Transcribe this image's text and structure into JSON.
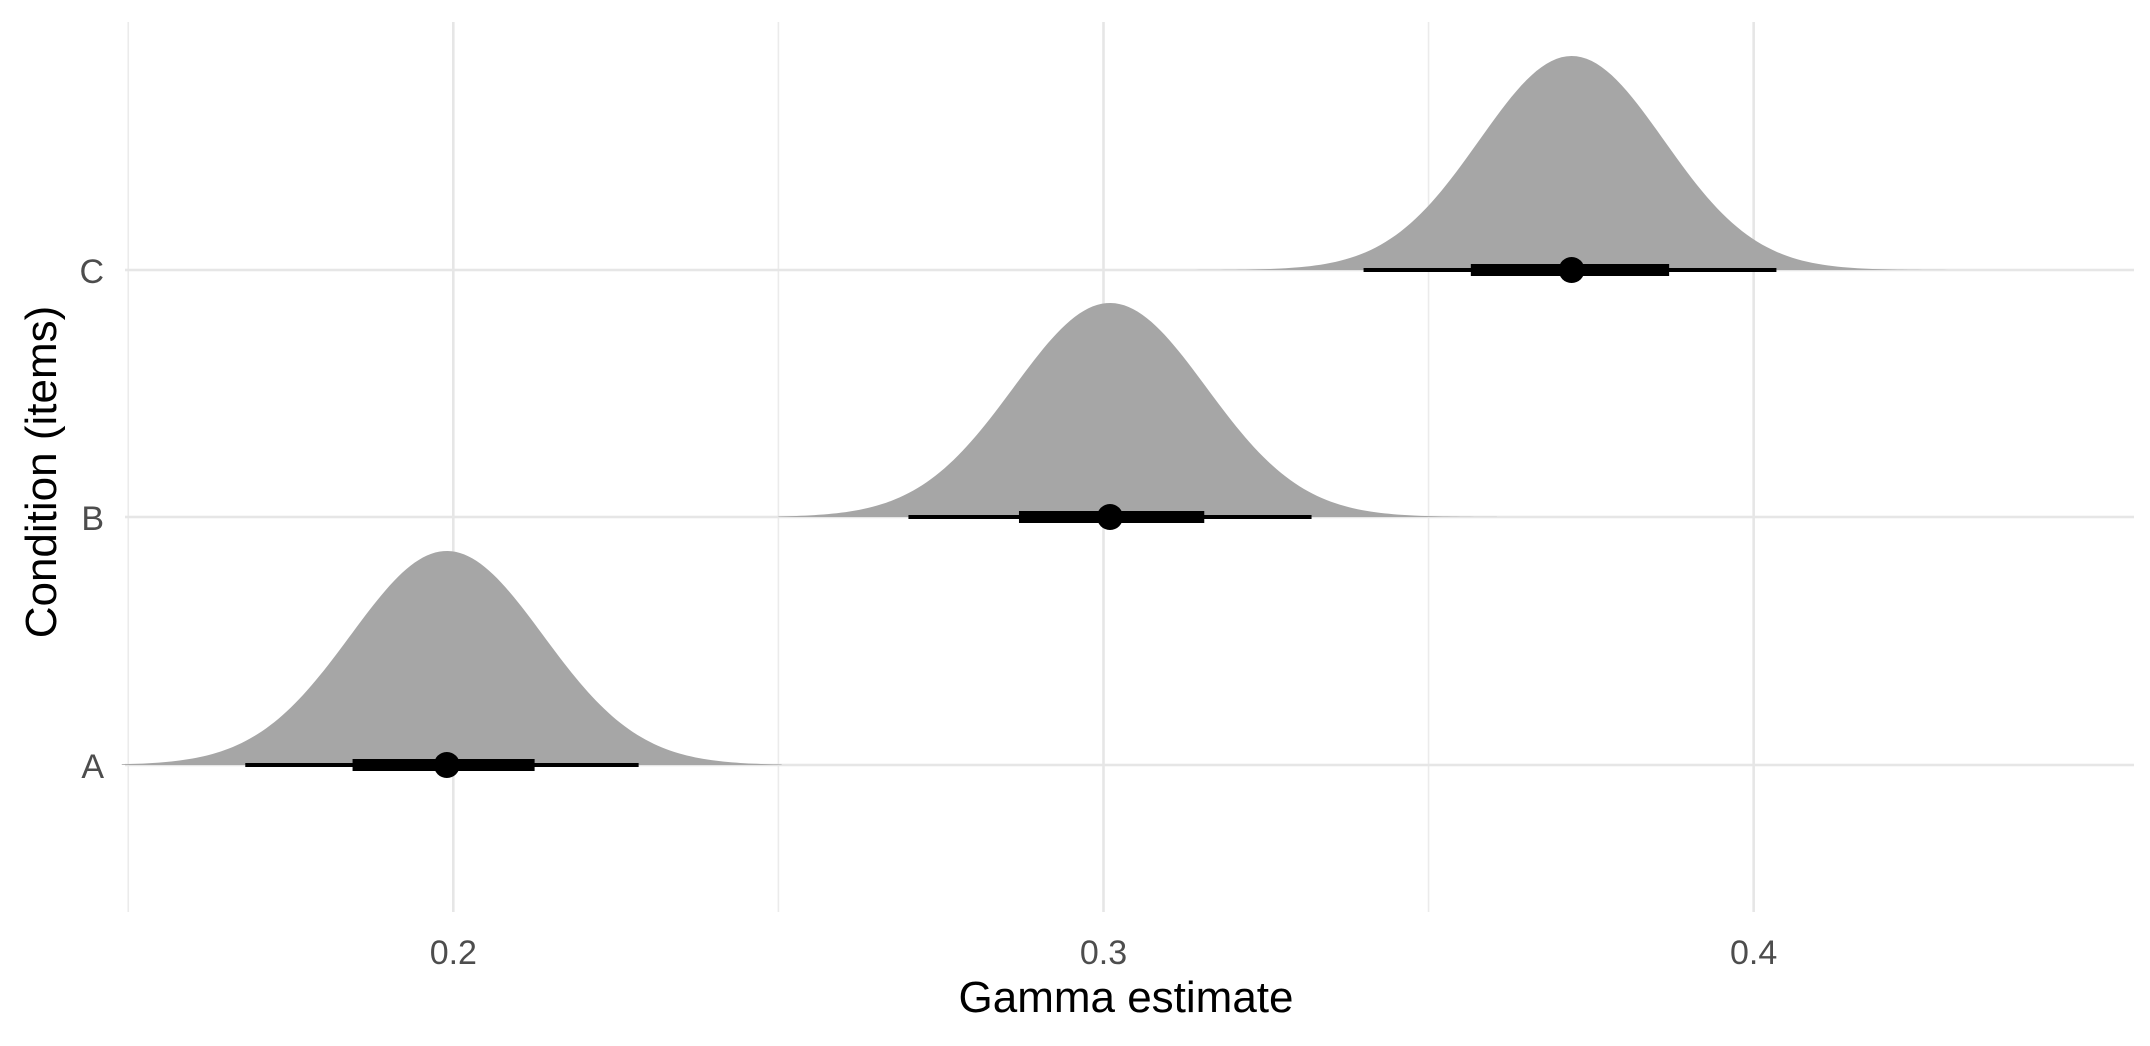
{
  "chart_data": {
    "type": "density",
    "xlabel": "Gamma estimate",
    "ylabel": "Condition (items)",
    "x_ticks": [
      0.2,
      0.3,
      0.4
    ],
    "x_tick_labels": [
      "0.2",
      "0.3",
      "0.4"
    ],
    "x_minor_ticks": [
      0.15,
      0.25,
      0.35
    ],
    "xlim": [
      0.1495,
      0.4585
    ],
    "categories": [
      "A",
      "B",
      "C"
    ],
    "grid": true,
    "fill_color": "#a6a6a6",
    "point_color": "#000000",
    "series": [
      {
        "category": "A",
        "mean": 0.199,
        "sd": 0.0148,
        "min": 0.149,
        "max": 0.2505,
        "interval_66": [
          0.1845,
          0.2125
        ],
        "interval_95": [
          0.168,
          0.2285
        ]
      },
      {
        "category": "B",
        "mean": 0.301,
        "sd": 0.0148,
        "min": 0.25,
        "max": 0.3605,
        "interval_66": [
          0.287,
          0.3155
        ],
        "interval_95": [
          0.27,
          0.332
        ]
      },
      {
        "category": "C",
        "mean": 0.372,
        "sd": 0.0142,
        "min": 0.311,
        "max": 0.4345,
        "interval_66": [
          0.3565,
          0.387
        ],
        "interval_95": [
          0.34,
          0.4035
        ]
      }
    ]
  }
}
